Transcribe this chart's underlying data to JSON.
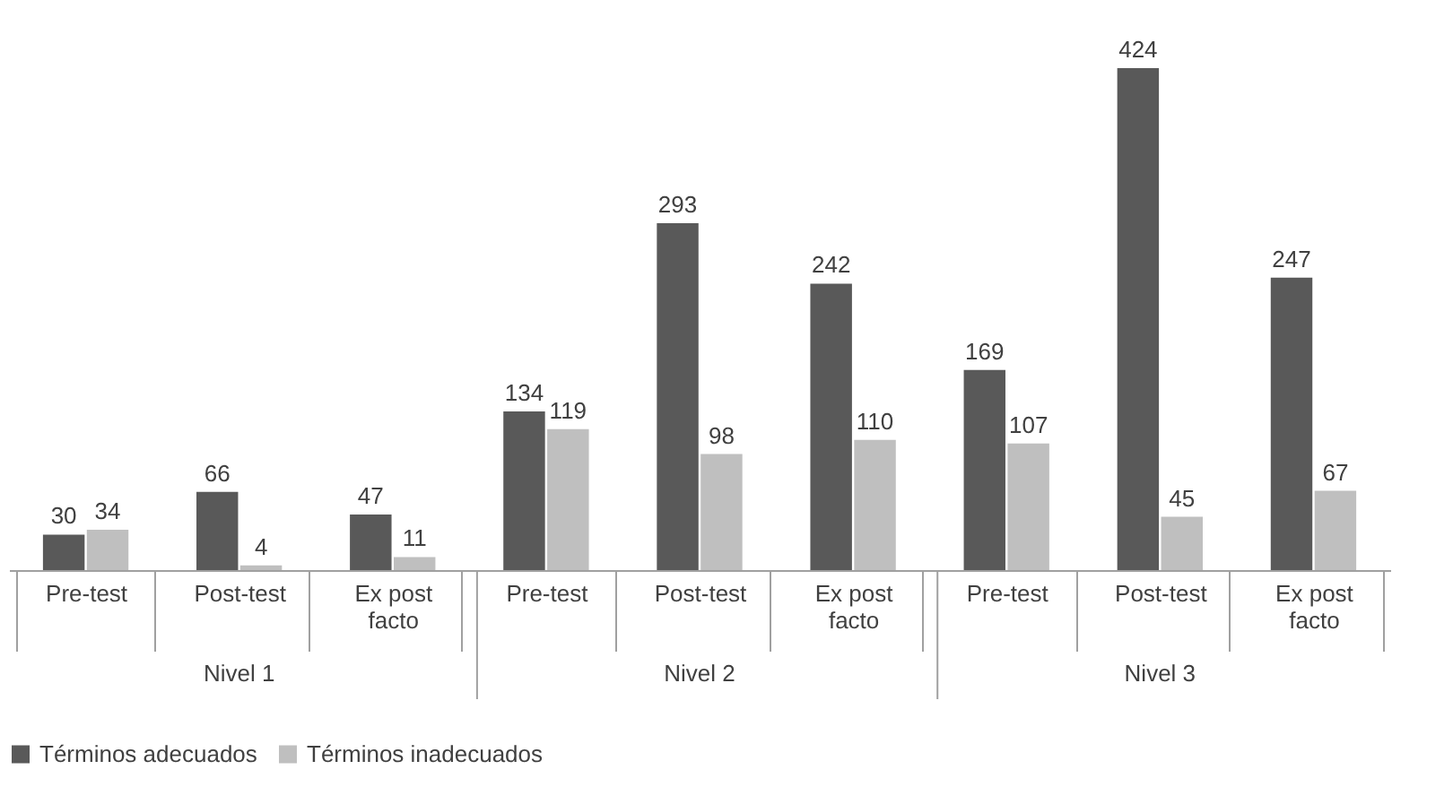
{
  "chart_data": {
    "type": "bar",
    "categories": [
      "Pre-test",
      "Post-test",
      "Ex post facto",
      "Pre-test",
      "Post-test",
      "Ex post facto",
      "Pre-test",
      "Post-test",
      "Ex post facto"
    ],
    "series": [
      {
        "name": "Términos adecuados",
        "color": "#595959",
        "values": [
          30,
          66,
          47,
          134,
          293,
          242,
          169,
          424,
          247
        ]
      },
      {
        "name": "Términos inadecuados",
        "color": "#bfbfbf",
        "values": [
          34,
          4,
          11,
          119,
          98,
          110,
          107,
          45,
          67
        ]
      }
    ],
    "annotations": [
      "Nivel 1",
      "Nivel 2",
      "Nivel 3"
    ],
    "data_labels": true,
    "legend": "bottom",
    "grid": false
  }
}
